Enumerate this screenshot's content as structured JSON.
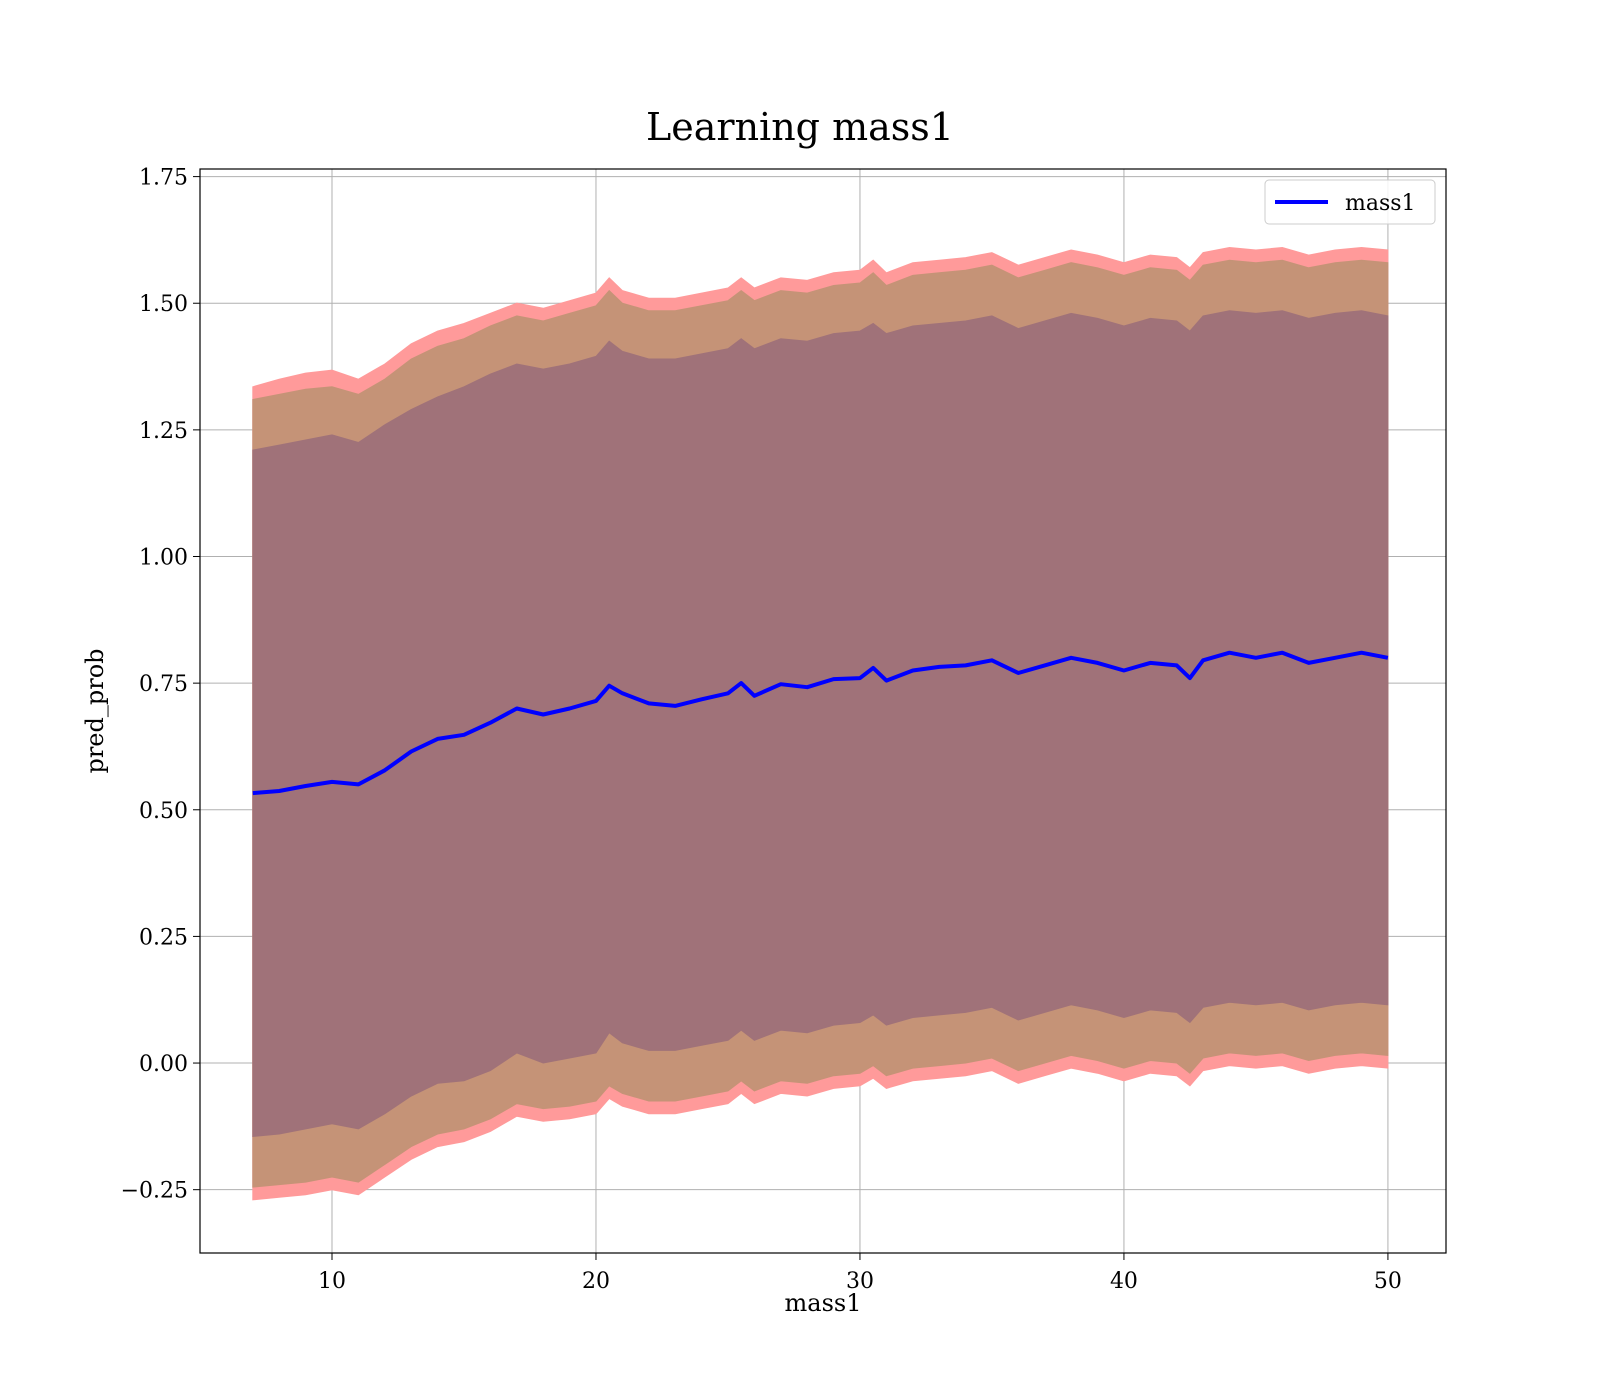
{
  "chart_data": {
    "type": "line",
    "title": "Learning mass1",
    "xlabel": "mass1",
    "ylabel": "pred_prob",
    "xlim": [
      5,
      52.2
    ],
    "ylim": [
      -0.375,
      1.765
    ],
    "xticks": [
      10,
      20,
      30,
      40,
      50
    ],
    "xtick_labels": [
      "10",
      "20",
      "30",
      "40",
      "50"
    ],
    "yticks": [
      -0.25,
      0.0,
      0.25,
      0.5,
      0.75,
      1.0,
      1.25,
      1.5,
      1.75
    ],
    "ytick_labels": [
      "−0.25",
      "0.00",
      "0.25",
      "0.50",
      "0.75",
      "1.00",
      "1.25",
      "1.50",
      "1.75"
    ],
    "grid": true,
    "legend": {
      "placement": "top-right",
      "entries": [
        "mass1"
      ]
    },
    "colors": {
      "line": "#0000ff",
      "band_outer": "#ff9a9a",
      "band_middle": "#c59377",
      "band_inner": "#a07279",
      "grid": "#b0b0b0"
    },
    "x": [
      7,
      8,
      9,
      10,
      11,
      12,
      13,
      14,
      15,
      16,
      17,
      18,
      19,
      20,
      20.5,
      21,
      22,
      23,
      24,
      25,
      25.5,
      26,
      27,
      28,
      29,
      30,
      30.5,
      31,
      32,
      33,
      34,
      35,
      36,
      37,
      38,
      39,
      40,
      41,
      42,
      42.5,
      43,
      44,
      45,
      46,
      47,
      48,
      49,
      50
    ],
    "series": [
      {
        "name": "mass1",
        "role": "mean",
        "values": [
          0.533,
          0.537,
          0.547,
          0.555,
          0.55,
          0.578,
          0.615,
          0.64,
          0.648,
          0.672,
          0.7,
          0.688,
          0.7,
          0.715,
          0.745,
          0.73,
          0.71,
          0.705,
          0.718,
          0.73,
          0.75,
          0.725,
          0.748,
          0.742,
          0.758,
          0.76,
          0.78,
          0.755,
          0.775,
          0.782,
          0.785,
          0.795,
          0.77,
          0.785,
          0.8,
          0.79,
          0.775,
          0.79,
          0.785,
          0.76,
          0.795,
          0.81,
          0.8,
          0.81,
          0.79,
          0.8,
          0.81,
          0.8
        ]
      },
      {
        "role": "band_outer_upper",
        "values": [
          1.335,
          1.35,
          1.362,
          1.368,
          1.35,
          1.38,
          1.42,
          1.445,
          1.46,
          1.48,
          1.5,
          1.49,
          1.505,
          1.52,
          1.55,
          1.525,
          1.51,
          1.51,
          1.52,
          1.53,
          1.55,
          1.53,
          1.55,
          1.545,
          1.56,
          1.565,
          1.585,
          1.56,
          1.58,
          1.585,
          1.59,
          1.6,
          1.575,
          1.59,
          1.605,
          1.595,
          1.58,
          1.595,
          1.59,
          1.57,
          1.6,
          1.61,
          1.605,
          1.61,
          1.595,
          1.605,
          1.61,
          1.605
        ]
      },
      {
        "role": "band_middle_upper",
        "values": [
          1.31,
          1.32,
          1.33,
          1.335,
          1.32,
          1.35,
          1.39,
          1.415,
          1.43,
          1.455,
          1.475,
          1.465,
          1.48,
          1.495,
          1.525,
          1.5,
          1.485,
          1.485,
          1.495,
          1.505,
          1.525,
          1.505,
          1.525,
          1.52,
          1.535,
          1.54,
          1.56,
          1.535,
          1.555,
          1.56,
          1.565,
          1.575,
          1.55,
          1.565,
          1.58,
          1.57,
          1.555,
          1.57,
          1.565,
          1.545,
          1.575,
          1.585,
          1.58,
          1.585,
          1.57,
          1.58,
          1.585,
          1.58
        ]
      },
      {
        "role": "band_inner_upper",
        "values": [
          1.21,
          1.22,
          1.23,
          1.24,
          1.225,
          1.26,
          1.29,
          1.315,
          1.335,
          1.36,
          1.38,
          1.37,
          1.38,
          1.395,
          1.425,
          1.405,
          1.39,
          1.39,
          1.4,
          1.41,
          1.43,
          1.41,
          1.43,
          1.425,
          1.44,
          1.445,
          1.46,
          1.44,
          1.455,
          1.46,
          1.465,
          1.475,
          1.45,
          1.465,
          1.48,
          1.47,
          1.455,
          1.47,
          1.465,
          1.445,
          1.475,
          1.485,
          1.48,
          1.485,
          1.47,
          1.48,
          1.485,
          1.475
        ]
      },
      {
        "role": "band_inner_lower",
        "values": [
          -0.145,
          -0.14,
          -0.13,
          -0.12,
          -0.13,
          -0.1,
          -0.065,
          -0.04,
          -0.035,
          -0.015,
          0.02,
          0.0,
          0.01,
          0.02,
          0.06,
          0.04,
          0.025,
          0.025,
          0.035,
          0.045,
          0.065,
          0.045,
          0.065,
          0.06,
          0.075,
          0.08,
          0.095,
          0.075,
          0.09,
          0.095,
          0.1,
          0.11,
          0.085,
          0.1,
          0.115,
          0.105,
          0.09,
          0.105,
          0.1,
          0.08,
          0.11,
          0.12,
          0.115,
          0.12,
          0.105,
          0.115,
          0.12,
          0.115
        ]
      },
      {
        "role": "band_middle_lower",
        "values": [
          -0.245,
          -0.24,
          -0.235,
          -0.225,
          -0.235,
          -0.2,
          -0.165,
          -0.14,
          -0.13,
          -0.11,
          -0.08,
          -0.09,
          -0.085,
          -0.075,
          -0.045,
          -0.06,
          -0.075,
          -0.075,
          -0.065,
          -0.055,
          -0.035,
          -0.055,
          -0.035,
          -0.04,
          -0.025,
          -0.02,
          -0.005,
          -0.025,
          -0.01,
          -0.005,
          0.0,
          0.01,
          -0.015,
          0.0,
          0.015,
          0.005,
          -0.01,
          0.005,
          0.0,
          -0.02,
          0.01,
          0.02,
          0.015,
          0.02,
          0.005,
          0.015,
          0.02,
          0.015
        ]
      },
      {
        "role": "band_outer_lower",
        "values": [
          -0.27,
          -0.265,
          -0.26,
          -0.25,
          -0.26,
          -0.225,
          -0.19,
          -0.165,
          -0.155,
          -0.135,
          -0.105,
          -0.115,
          -0.11,
          -0.1,
          -0.07,
          -0.085,
          -0.1,
          -0.1,
          -0.09,
          -0.08,
          -0.06,
          -0.08,
          -0.06,
          -0.065,
          -0.05,
          -0.045,
          -0.03,
          -0.05,
          -0.035,
          -0.03,
          -0.025,
          -0.015,
          -0.04,
          -0.025,
          -0.01,
          -0.02,
          -0.035,
          -0.02,
          -0.025,
          -0.045,
          -0.015,
          -0.005,
          -0.01,
          -0.005,
          -0.02,
          -0.01,
          -0.005,
          -0.01
        ]
      }
    ]
  }
}
